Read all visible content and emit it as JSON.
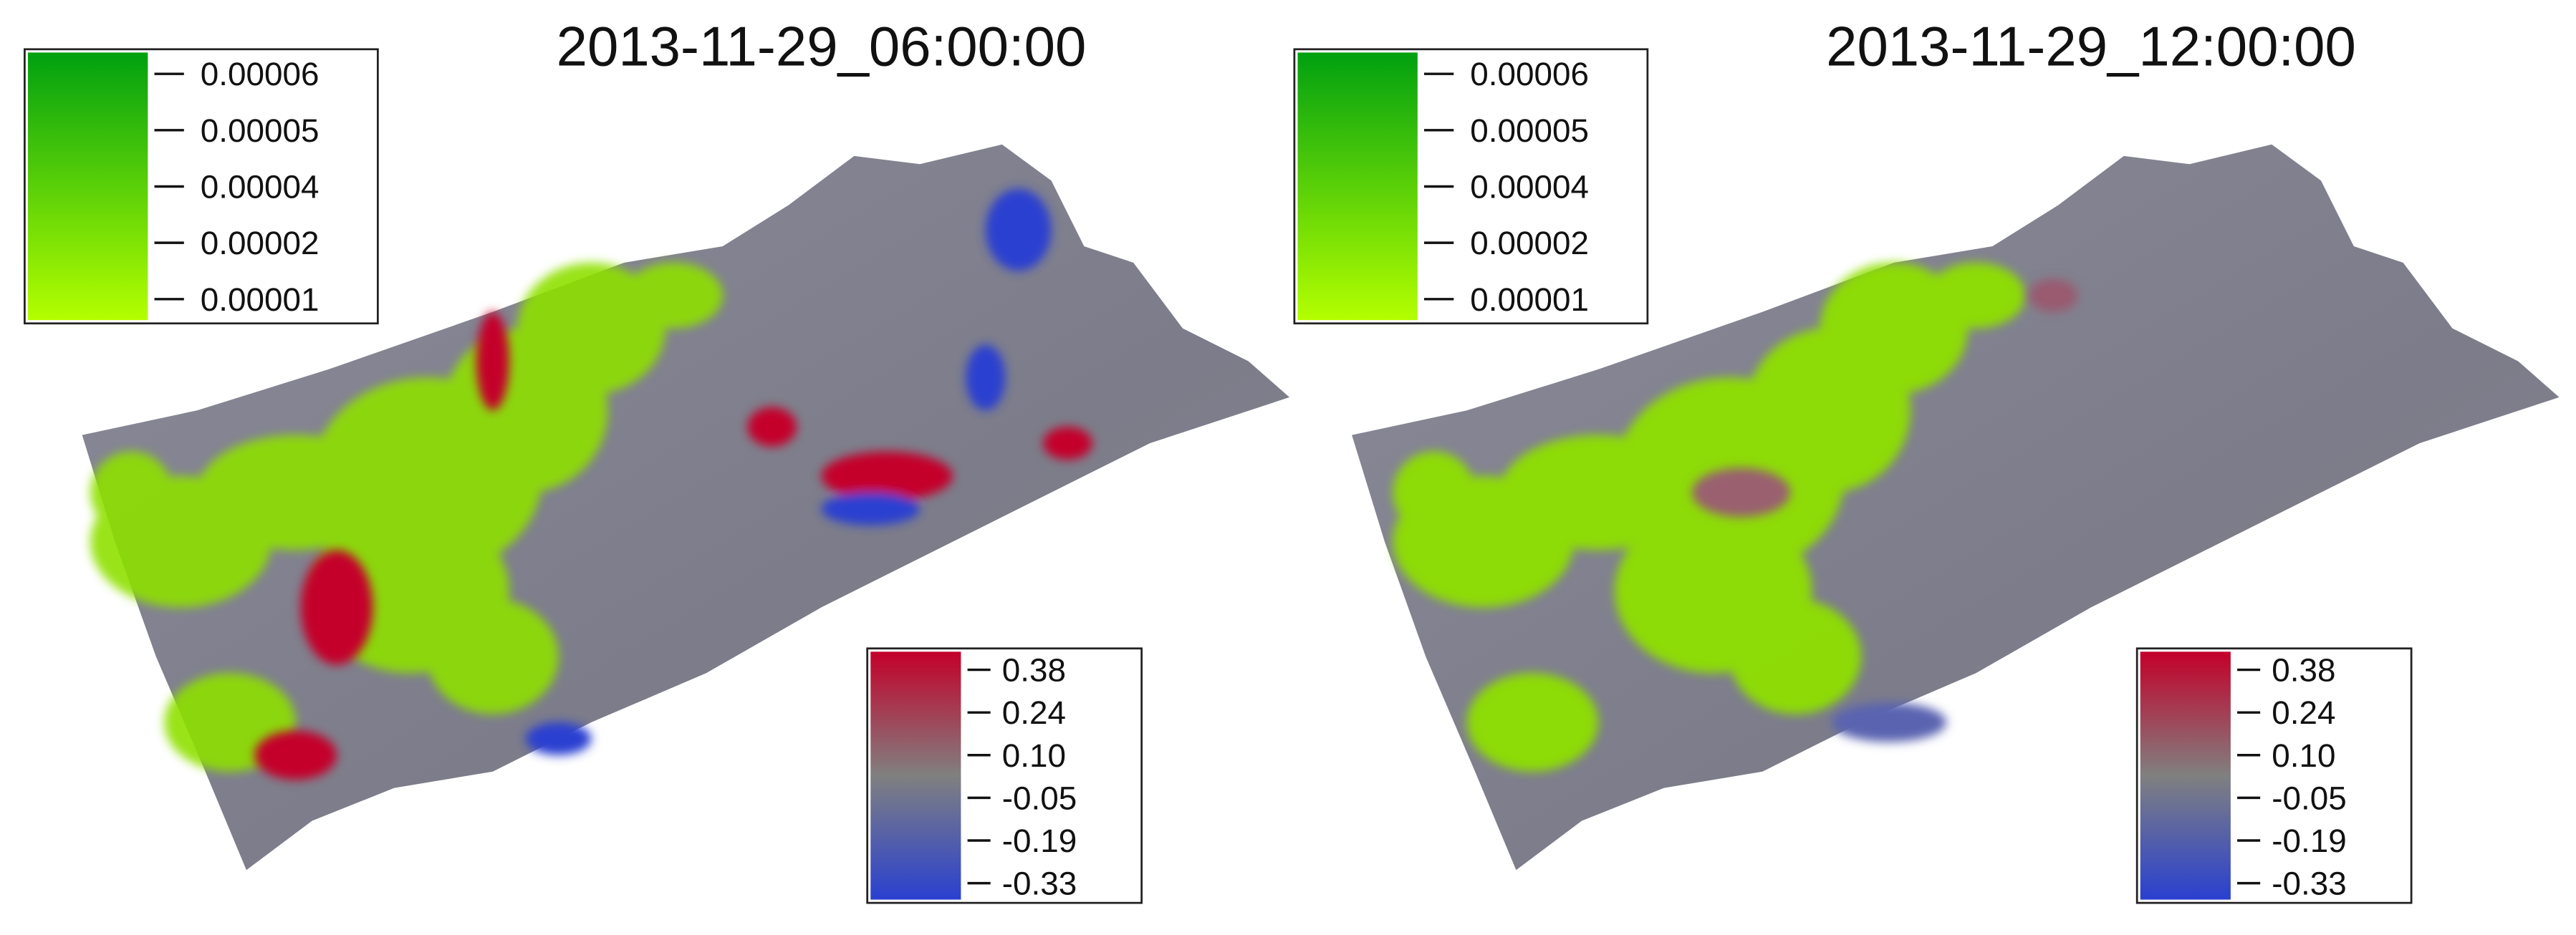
{
  "panels": [
    {
      "title": "2013-11-29_06:00:00",
      "green_legend": {
        "ticks": [
          "0.00006",
          "0.00005",
          "0.00004",
          "0.00002",
          "0.00001"
        ]
      },
      "color_legend": {
        "ticks": [
          "0.38",
          "0.24",
          "0.10",
          "-0.05",
          "-0.19",
          "-0.33"
        ]
      }
    },
    {
      "title": "2013-11-29_12:00:00",
      "green_legend": {
        "ticks": [
          "0.00006",
          "0.00005",
          "0.00004",
          "0.00002",
          "0.00001"
        ]
      },
      "color_legend": {
        "ticks": [
          "0.38",
          "0.24",
          "0.10",
          "-0.05",
          "-0.19",
          "-0.33"
        ]
      }
    }
  ]
}
